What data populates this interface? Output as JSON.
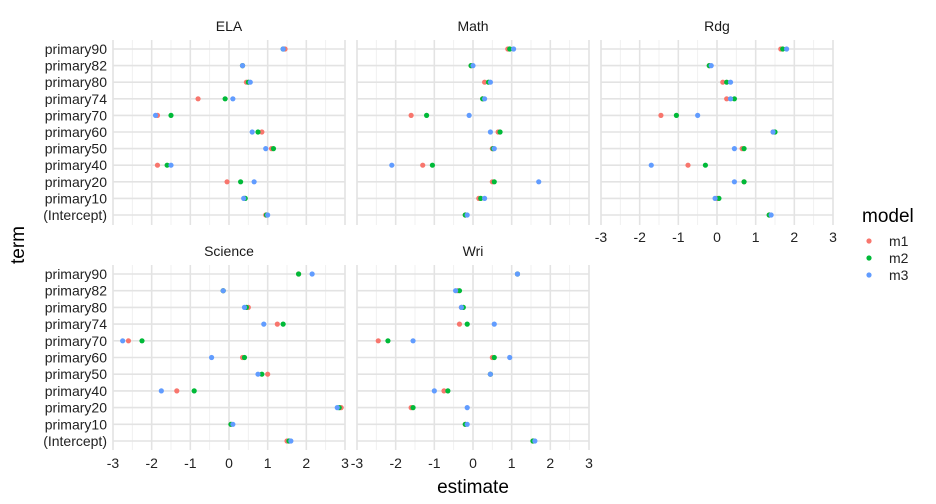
{
  "chart_data": {
    "type": "scatter",
    "xlabel": "estimate",
    "ylabel": "term",
    "xlim": [
      -3,
      3
    ],
    "xticks": [
      -3,
      -2,
      -1,
      0,
      1,
      2,
      3
    ],
    "terms": [
      "(Intercept)",
      "primary10",
      "primary20",
      "primary40",
      "primary50",
      "primary60",
      "primary70",
      "primary74",
      "primary80",
      "primary82",
      "primary90"
    ],
    "legend": {
      "title": "model",
      "position": "right",
      "entries": [
        {
          "name": "m1",
          "color": "#F8766D"
        },
        {
          "name": "m2",
          "color": "#00BA38"
        },
        {
          "name": "m3",
          "color": "#619CFF"
        }
      ]
    },
    "grid": true,
    "panels": [
      {
        "name": "ELA",
        "series": [
          {
            "name": "m1",
            "values": [
              0.95,
              0.4,
              -0.05,
              -1.85,
              1.1,
              0.85,
              -1.85,
              -0.8,
              0.45,
              0.35,
              1.45
            ]
          },
          {
            "name": "m2",
            "values": [
              0.97,
              0.42,
              0.3,
              -1.6,
              1.15,
              0.75,
              -1.5,
              -0.1,
              0.5,
              0.35,
              1.4
            ]
          },
          {
            "name": "m3",
            "values": [
              1.0,
              0.38,
              0.65,
              -1.5,
              0.95,
              0.6,
              -1.9,
              0.1,
              0.55,
              0.35,
              1.4
            ]
          }
        ]
      },
      {
        "name": "Math",
        "series": [
          {
            "name": "m1",
            "values": [
              -0.2,
              0.15,
              0.5,
              -1.3,
              0.5,
              0.65,
              -1.6,
              0.25,
              0.3,
              -0.05,
              0.9
            ]
          },
          {
            "name": "m2",
            "values": [
              -0.2,
              0.2,
              0.55,
              -1.05,
              0.52,
              0.7,
              -1.2,
              0.25,
              0.4,
              -0.05,
              0.95
            ]
          },
          {
            "name": "m3",
            "values": [
              -0.15,
              0.3,
              1.7,
              -2.1,
              0.55,
              0.45,
              -0.1,
              0.3,
              0.45,
              0.0,
              1.05
            ]
          }
        ]
      },
      {
        "name": "Rdg",
        "series": [
          {
            "name": "m1",
            "values": [
              1.35,
              0.0,
              0.7,
              -0.75,
              0.65,
              1.45,
              -1.45,
              0.25,
              0.15,
              -0.2,
              1.65
            ]
          },
          {
            "name": "m2",
            "values": [
              1.35,
              0.05,
              0.7,
              -0.3,
              0.7,
              1.5,
              -1.05,
              0.45,
              0.25,
              -0.2,
              1.7
            ]
          },
          {
            "name": "m3",
            "values": [
              1.4,
              -0.05,
              0.45,
              -1.7,
              0.45,
              1.45,
              -0.5,
              0.35,
              0.35,
              -0.15,
              1.8
            ]
          }
        ]
      },
      {
        "name": "Science",
        "series": [
          {
            "name": "m1",
            "values": [
              1.5,
              0.05,
              2.9,
              -1.35,
              1.0,
              0.35,
              -2.6,
              1.25,
              0.5,
              -0.15,
              1.8
            ]
          },
          {
            "name": "m2",
            "values": [
              1.55,
              0.05,
              2.85,
              -0.9,
              0.85,
              0.4,
              -2.25,
              1.4,
              0.45,
              -0.15,
              1.8
            ]
          },
          {
            "name": "m3",
            "values": [
              1.6,
              0.1,
              2.8,
              -1.75,
              0.75,
              -0.45,
              -2.75,
              0.9,
              0.4,
              -0.15,
              2.15
            ]
          }
        ]
      },
      {
        "name": "Wri",
        "series": [
          {
            "name": "m1",
            "values": [
              1.55,
              -0.2,
              -1.6,
              -0.75,
              0.45,
              0.5,
              -2.45,
              -0.35,
              -0.3,
              -0.4,
              1.15
            ]
          },
          {
            "name": "m2",
            "values": [
              1.55,
              -0.2,
              -1.55,
              -0.65,
              0.45,
              0.55,
              -2.2,
              -0.15,
              -0.25,
              -0.35,
              1.15
            ]
          },
          {
            "name": "m3",
            "values": [
              1.6,
              -0.15,
              -0.15,
              -1.0,
              0.45,
              0.95,
              -1.55,
              0.55,
              -0.3,
              -0.45,
              1.15
            ]
          }
        ]
      }
    ]
  }
}
